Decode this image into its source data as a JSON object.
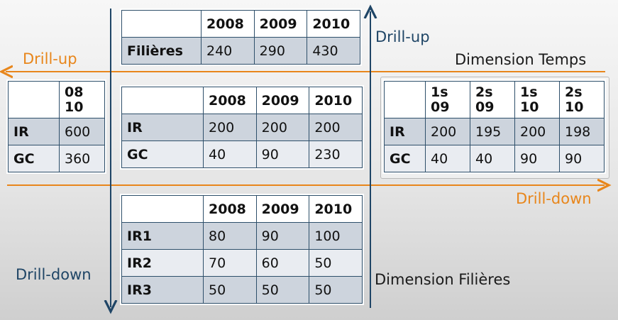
{
  "labels": {
    "drill_up_left": "Drill-up",
    "drill_up_top": "Drill-up",
    "drill_down_right": "Drill-down",
    "drill_down_left": "Drill-down",
    "dimension_temps": "Dimension Temps",
    "dimension_filieres": "Dimension Filières"
  },
  "colors": {
    "blue_axis": "#1f4566",
    "orange_axis": "#e8861b"
  },
  "table_top": {
    "columns": [
      "",
      "2008",
      "2009",
      "2010"
    ],
    "rows": [
      [
        "Filières",
        "240",
        "290",
        "430"
      ]
    ]
  },
  "table_left": {
    "columns": [
      "",
      "08\n10"
    ],
    "rows": [
      [
        "IR",
        "600"
      ],
      [
        "GC",
        "360"
      ]
    ]
  },
  "table_center": {
    "columns": [
      "",
      "2008",
      "2009",
      "2010"
    ],
    "rows": [
      [
        "IR",
        "200",
        "200",
        "200"
      ],
      [
        "GC",
        "40",
        "90",
        "230"
      ]
    ]
  },
  "table_right": {
    "columns": [
      "",
      "1s\n09",
      "2s\n09",
      "1s\n10",
      "2s\n10"
    ],
    "rows": [
      [
        "IR",
        "200",
        "195",
        "200",
        "198"
      ],
      [
        "GC",
        "40",
        "40",
        "90",
        "90"
      ]
    ]
  },
  "table_bottom": {
    "columns": [
      "",
      "2008",
      "2009",
      "2010"
    ],
    "rows": [
      [
        "IR1",
        "80",
        "90",
        "100"
      ],
      [
        "IR2",
        "70",
        "60",
        "50"
      ],
      [
        "IR3",
        "50",
        "50",
        "50"
      ]
    ]
  }
}
